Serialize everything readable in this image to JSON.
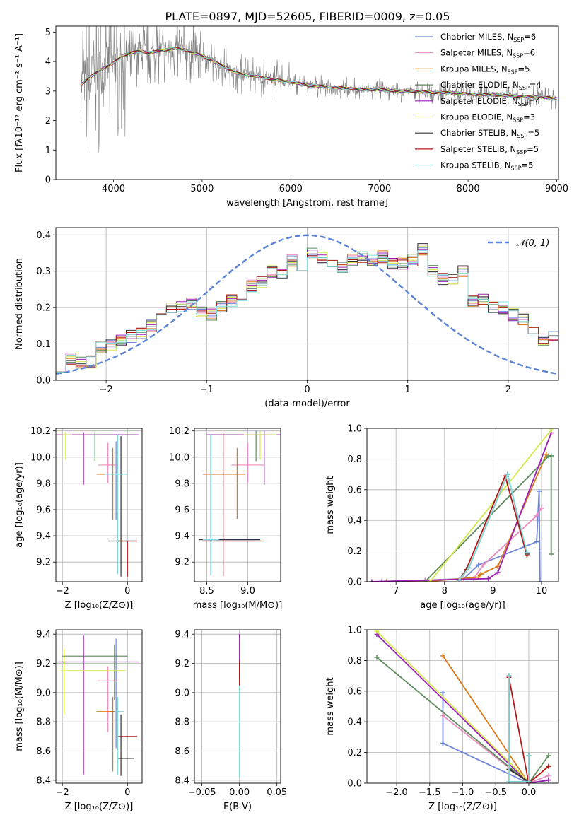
{
  "title": "PLATE=0897, MJD=52605, FIBERID=0009, z=0.05",
  "legend_entries": [
    {
      "label": "Chabrier MILES, N",
      "sub": "SSP",
      "tail": "=6",
      "color": "#6f86d8"
    },
    {
      "label": "Salpeter MILES, N",
      "sub": "SSP",
      "tail": "=6",
      "color": "#e98bbf"
    },
    {
      "label": "Kroupa MILES, N",
      "sub": "SSP",
      "tail": "=5",
      "color": "#d9791b"
    },
    {
      "label": "Chabrier ELODIE, N",
      "sub": "SSP",
      "tail": "=4",
      "color": "#5a8a5a"
    },
    {
      "label": "Salpeter ELODIE, N",
      "sub": "SSP",
      "tail": "=4",
      "color": "#9b1fb5"
    },
    {
      "label": "Kroupa ELODIE, N",
      "sub": "SSP",
      "tail": "=3",
      "color": "#d4e84a"
    },
    {
      "label": "Chabrier STELIB, N",
      "sub": "SSP",
      "tail": "=5",
      "color": "#333333"
    },
    {
      "label": "Salpeter STELIB, N",
      "sub": "SSP",
      "tail": "=5",
      "color": "#b01818"
    },
    {
      "label": "Kroupa STELIB, N",
      "sub": "SSP",
      "tail": "=5",
      "color": "#7fd9d9"
    }
  ],
  "hist_legend": "𝒩(0, 1)",
  "chart_data": [
    {
      "type": "line",
      "panel": "spectrum",
      "xlabel": "wavelength [Angstrom, rest frame]",
      "ylabel": "Flux [fλ10⁻¹⁷ erg cm⁻² s⁻¹ A⁻¹]",
      "xlim": [
        3350,
        9020
      ],
      "ylim": [
        0,
        5.2
      ],
      "xticks": [
        4000,
        5000,
        6000,
        7000,
        8000,
        9000
      ],
      "yticks": [
        0,
        1,
        2,
        3,
        4,
        5
      ],
      "continuum": {
        "x": [
          3630,
          3700,
          3800,
          3900,
          4000,
          4100,
          4200,
          4300,
          4400,
          4500,
          4600,
          4700,
          4800,
          4900,
          5000,
          5200,
          5400,
          5600,
          5800,
          6000,
          6200,
          6400,
          6600,
          6800,
          7000,
          7200,
          7400,
          7600,
          7800,
          8000,
          8400,
          8800,
          9000
        ],
        "y": [
          3.2,
          3.4,
          3.6,
          3.8,
          3.95,
          4.2,
          4.3,
          4.35,
          4.3,
          4.35,
          4.4,
          4.45,
          4.4,
          4.3,
          4.2,
          3.9,
          3.6,
          3.5,
          3.4,
          3.3,
          3.2,
          3.15,
          3.1,
          3.05,
          3.05,
          3.0,
          3.0,
          2.95,
          2.95,
          2.9,
          2.85,
          2.8,
          2.75
        ]
      }
    },
    {
      "type": "line",
      "panel": "residual-histogram",
      "xlabel": "(data-model)/error",
      "ylabel": "Normed distribution",
      "xlim": [
        -2.5,
        2.5
      ],
      "ylim": [
        0,
        0.42
      ],
      "xticks": [
        -2,
        -1,
        0,
        1,
        2
      ],
      "yticks": [
        0.0,
        0.1,
        0.2,
        0.3,
        0.4
      ],
      "bin_edges_start": -2.5,
      "bin_width": 0.1,
      "base_profile": [
        0.04,
        0.06,
        0.05,
        0.05,
        0.09,
        0.1,
        0.11,
        0.12,
        0.13,
        0.15,
        0.17,
        0.2,
        0.2,
        0.21,
        0.19,
        0.18,
        0.2,
        0.22,
        0.21,
        0.26,
        0.27,
        0.3,
        0.29,
        0.33,
        0.31,
        0.35,
        0.34,
        0.32,
        0.31,
        0.33,
        0.34,
        0.33,
        0.34,
        0.32,
        0.32,
        0.33,
        0.36,
        0.3,
        0.28,
        0.28,
        0.3,
        0.22,
        0.22,
        0.2,
        0.2,
        0.18,
        0.17,
        0.13,
        0.11,
        0.12,
        0.1,
        0.1,
        0.09,
        0.08,
        0.07,
        0.07,
        0.05,
        0.05,
        0.04,
        0.04,
        0.03,
        0.04,
        0.04
      ],
      "series_name": "𝒩(0, 1)"
    },
    {
      "type": "scatter",
      "panel": "age-vs-Z",
      "xlabel": "Z [log₁₀(Z/Z⊙)]",
      "ylabel": "age  [log₁₀(age/yr)]",
      "xlim": [
        -2.2,
        0.45
      ],
      "ylim": [
        9.05,
        10.22
      ],
      "xticks": [
        -2,
        0
      ],
      "yticks": [
        9.2,
        9.4,
        9.6,
        9.8,
        10.0,
        10.2
      ],
      "points": [
        {
          "x": -0.35,
          "y": 9.87,
          "xerr": [
            0.6,
            0.15
          ],
          "yerr": [
            0.35,
            0.25
          ],
          "s": 0
        },
        {
          "x": -0.6,
          "y": 9.94,
          "xerr": [
            0.3,
            0.3
          ],
          "yerr": [
            0.14,
            0.17
          ],
          "s": 1
        },
        {
          "x": -0.45,
          "y": 9.87,
          "xerr": [
            0.5,
            0.2
          ],
          "yerr": [
            0.35,
            0.2
          ],
          "s": 2
        },
        {
          "x": -1.0,
          "y": 10.17,
          "xerr": [
            1.0,
            1.3
          ],
          "yerr": [
            0.2,
            0.02
          ],
          "s": 3
        },
        {
          "x": -1.35,
          "y": 10.17,
          "xerr": [
            0.9,
            1.7
          ],
          "yerr": [
            0.38,
            0.02
          ],
          "s": 4
        },
        {
          "x": -1.9,
          "y": 10.17,
          "xerr": [
            0.1,
            0.2
          ],
          "yerr": [
            0.19,
            0.02
          ],
          "s": 5
        },
        {
          "x": -0.2,
          "y": 9.36,
          "xerr": [
            0.4,
            0.5
          ],
          "yerr": [
            0.27,
            0.8
          ],
          "s": 6
        },
        {
          "x": 0.0,
          "y": 9.36,
          "xerr": [
            0.3,
            0.3
          ],
          "yerr": [
            0.27,
            0.0
          ],
          "s": 7
        },
        {
          "x": -0.3,
          "y": 9.87,
          "xerr": [
            0.4,
            0.3
          ],
          "yerr": [
            0.76,
            0.3
          ],
          "s": 8
        }
      ]
    },
    {
      "type": "scatter",
      "panel": "age-vs-mass",
      "xlabel": "mass [log₁₀(M/M⊙)]",
      "ylabel": "",
      "xlim": [
        8.35,
        9.4
      ],
      "ylim": [
        9.05,
        10.22
      ],
      "xticks": [
        8.5,
        9.0
      ],
      "yticks": [
        9.2,
        9.4,
        9.6,
        9.8,
        10.0,
        10.2
      ],
      "points": [
        {
          "x": 8.55,
          "y": 9.87,
          "xerr": [
            0.1,
            0.3
          ],
          "yerr": [
            0.6,
            0.3
          ],
          "s": 0
        },
        {
          "x": 9.0,
          "y": 9.94,
          "xerr": [
            0.2,
            0.2
          ],
          "yerr": [
            0.14,
            0.17
          ],
          "s": 1
        },
        {
          "x": 8.87,
          "y": 9.87,
          "xerr": [
            0.42,
            0.1
          ],
          "yerr": [
            0.34,
            0.2
          ],
          "s": 2
        },
        {
          "x": 9.1,
          "y": 10.17,
          "xerr": [
            0.6,
            0.2
          ],
          "yerr": [
            0.2,
            0.03
          ],
          "s": 3
        },
        {
          "x": 9.2,
          "y": 10.17,
          "xerr": [
            0.7,
            0.25
          ],
          "yerr": [
            0.38,
            0.03
          ],
          "s": 4
        },
        {
          "x": 9.15,
          "y": 10.17,
          "xerr": [
            0.2,
            0.2
          ],
          "yerr": [
            0.19,
            0.03
          ],
          "s": 5
        },
        {
          "x": 8.55,
          "y": 9.37,
          "xerr": [
            0.15,
            0.6
          ],
          "yerr": [
            0.27,
            0.8
          ],
          "s": 6
        },
        {
          "x": 8.7,
          "y": 9.36,
          "xerr": [
            0.25,
            0.5
          ],
          "yerr": [
            0.27,
            0.82
          ],
          "s": 7
        },
        {
          "x": 8.55,
          "y": 9.37,
          "xerr": [
            0.1,
            0.1
          ],
          "yerr": [
            0.27,
            0.8
          ],
          "s": 8
        }
      ]
    },
    {
      "type": "line",
      "panel": "mass-weight-vs-age",
      "xlabel": "age  [log₁₀(age/yr)]",
      "ylabel": "mass weight",
      "xlim": [
        6.4,
        10.35
      ],
      "ylim": [
        0,
        1.0
      ],
      "xticks": [
        7,
        8,
        9,
        10
      ],
      "yticks": [
        0.0,
        0.2,
        0.4,
        0.6,
        0.8,
        1.0
      ],
      "series": [
        {
          "s": 0,
          "x": [
            6.5,
            7.6,
            8.4,
            8.7,
            9.9,
            9.95,
            9.97
          ],
          "y": [
            0.0,
            0.01,
            0.02,
            0.11,
            0.26,
            0.59,
            0.0
          ]
        },
        {
          "s": 1,
          "x": [
            6.7,
            7.6,
            8.6,
            8.8,
            9.9,
            10.0
          ],
          "y": [
            0.0,
            0.01,
            0.02,
            0.11,
            0.43,
            0.48
          ]
        },
        {
          "s": 2,
          "x": [
            6.8,
            7.6,
            8.7,
            8.75,
            9.1,
            10.1
          ],
          "y": [
            0.0,
            0.0,
            0.03,
            0.05,
            0.1,
            0.83
          ]
        },
        {
          "s": 3,
          "x": [
            7.6,
            10.15,
            10.2,
            10.2
          ],
          "y": [
            0.0,
            0.82,
            0.82,
            0.18
          ]
        },
        {
          "s": 4,
          "x": [
            6.5,
            8.9,
            9.1,
            10.2
          ],
          "y": [
            0.0,
            0.02,
            0.06,
            0.97
          ]
        },
        {
          "s": 5,
          "x": [
            7.7,
            10.2
          ],
          "y": [
            0.0,
            0.99
          ]
        },
        {
          "s": 6,
          "x": [
            8.3,
            8.5,
            9.3,
            9.7
          ],
          "y": [
            0.01,
            0.09,
            0.7,
            0.18
          ]
        },
        {
          "s": 7,
          "x": [
            8.3,
            8.45,
            9.25,
            9.7
          ],
          "y": [
            0.01,
            0.08,
            0.69,
            0.17
          ]
        },
        {
          "s": 8,
          "x": [
            8.3,
            8.5,
            9.3,
            9.7
          ],
          "y": [
            0.01,
            0.09,
            0.7,
            0.19
          ]
        }
      ]
    },
    {
      "type": "scatter",
      "panel": "mass-vs-Z",
      "xlabel": "Z [log₁₀(Z/Z⊙)]",
      "ylabel": "mass [log₁₀(M/M⊙)]",
      "xlim": [
        -2.2,
        0.45
      ],
      "ylim": [
        8.38,
        9.43
      ],
      "xticks": [
        -2,
        0
      ],
      "yticks": [
        8.4,
        8.6,
        8.8,
        9.0,
        9.2,
        9.4
      ],
      "points": [
        {
          "x": -0.35,
          "y": 8.87,
          "xerr": [
            0.2,
            0.1
          ],
          "yerr": [
            0.25,
            0.5
          ],
          "s": 0
        },
        {
          "x": -0.6,
          "y": 9.08,
          "xerr": [
            0.3,
            0.3
          ],
          "yerr": [
            0.35,
            0.1
          ],
          "s": 1
        },
        {
          "x": -0.45,
          "y": 8.87,
          "xerr": [
            0.5,
            0.1
          ],
          "yerr": [
            0.41,
            0.1
          ],
          "s": 2
        },
        {
          "x": -0.4,
          "y": 9.25,
          "xerr": [
            1.6,
            0.4
          ],
          "yerr": [
            0.3,
            0.08
          ],
          "s": 3
        },
        {
          "x": -1.35,
          "y": 9.21,
          "xerr": [
            0.8,
            1.7
          ],
          "yerr": [
            0.77,
            0.18
          ],
          "s": 4
        },
        {
          "x": -1.95,
          "y": 9.15,
          "xerr": [
            0.1,
            1.9
          ],
          "yerr": [
            0.3,
            0.15
          ],
          "s": 5
        },
        {
          "x": -0.2,
          "y": 8.55,
          "xerr": [
            0.1,
            0.4
          ],
          "yerr": [
            0.12,
            0.3
          ],
          "s": 6
        },
        {
          "x": 0.0,
          "y": 8.7,
          "xerr": [
            0.3,
            0.3
          ],
          "yerr": [
            0.0,
            0.0
          ],
          "s": 7
        },
        {
          "x": -0.3,
          "y": 8.87,
          "xerr": [
            0.1,
            0.2
          ],
          "yerr": [
            0.43,
            0.1
          ],
          "s": 8
        }
      ]
    },
    {
      "type": "scatter",
      "panel": "mass-vs-EBV",
      "xlabel": "E(B-V)",
      "ylabel": "",
      "xlim": [
        -0.06,
        0.055
      ],
      "ylim": [
        8.38,
        9.43
      ],
      "xticks": [
        -0.05,
        0.0,
        0.05
      ],
      "yticks": [
        8.4,
        8.6,
        8.8,
        9.0,
        9.2,
        9.4
      ],
      "points": [
        {
          "x": 0.0,
          "y": 8.9,
          "yerr": [
            0.48,
            0.45
          ],
          "s": 8
        },
        {
          "x": 0.0,
          "y": 9.2,
          "yerr": [
            0.1,
            0.2
          ],
          "s": 4
        },
        {
          "x": 0.0,
          "y": 9.1,
          "yerr": [
            0.05,
            0.12
          ],
          "s": 7
        }
      ]
    },
    {
      "type": "line",
      "panel": "mass-weight-vs-Z",
      "xlabel": "Z [log₁₀(Z/Z⊙)]",
      "ylabel": "mass weight",
      "xlim": [
        -2.45,
        0.45
      ],
      "ylim": [
        0,
        1.0
      ],
      "xticks": [
        -2.0,
        -1.5,
        -1.0,
        -0.5,
        0.0
      ],
      "yticks": [
        0.0,
        0.2,
        0.4,
        0.6,
        0.8,
        1.0
      ],
      "series": [
        {
          "s": 0,
          "x": [
            -1.3,
            -1.3,
            -1.3,
            0.0,
            0.3
          ],
          "y": [
            0.59,
            0.26,
            0.26,
            0.0,
            0.02
          ]
        },
        {
          "s": 1,
          "x": [
            -1.3,
            0.0,
            0.3
          ],
          "y": [
            0.44,
            0.0,
            0.05
          ]
        },
        {
          "s": 2,
          "x": [
            -1.3,
            0.0,
            0.3
          ],
          "y": [
            0.83,
            0.0,
            0.11
          ]
        },
        {
          "s": 3,
          "x": [
            -2.3,
            0.0,
            0.3
          ],
          "y": [
            0.82,
            0.0,
            0.18
          ]
        },
        {
          "s": 4,
          "x": [
            -2.3,
            0.0,
            0.3
          ],
          "y": [
            0.97,
            0.0,
            0.02
          ]
        },
        {
          "s": 5,
          "x": [
            -2.3,
            0.0
          ],
          "y": [
            0.99,
            0.01
          ]
        },
        {
          "s": 6,
          "x": [
            -0.3,
            -0.3,
            0.0,
            0.0
          ],
          "y": [
            0.7,
            0.09,
            0.01,
            0.18
          ]
        },
        {
          "s": 7,
          "x": [
            -0.3,
            0.0,
            0.3
          ],
          "y": [
            0.69,
            0.0,
            0.11
          ]
        },
        {
          "s": 8,
          "x": [
            -0.3,
            -0.3,
            0.0,
            0.0
          ],
          "y": [
            0.7,
            0.01,
            0.01,
            0.18
          ]
        }
      ]
    }
  ]
}
